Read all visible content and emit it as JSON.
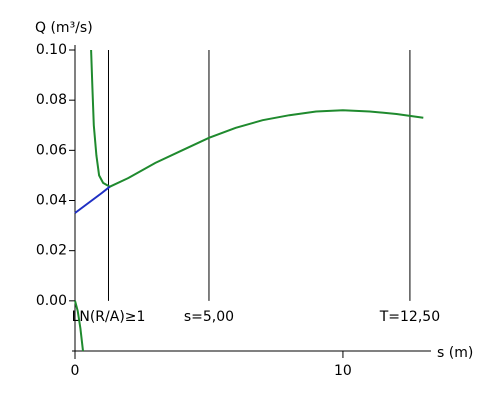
{
  "chart_data": {
    "type": "line",
    "y_label": "Q (m³/s)",
    "x_label": "s (m)",
    "xlim": [
      0,
      13.1
    ],
    "ylim": [
      -0.02,
      0.1
    ],
    "xticks": [
      0,
      10
    ],
    "yticks": [
      {
        "value": 0,
        "label": "0.00"
      },
      {
        "value": 0.02,
        "label": "0.02"
      },
      {
        "value": 0.04,
        "label": "0.04"
      },
      {
        "value": 0.06,
        "label": "0.06"
      },
      {
        "value": 0.08,
        "label": "0.08"
      },
      {
        "value": 0.1,
        "label": "0.10"
      }
    ],
    "markers": [
      {
        "x": 1.25,
        "label": "LN(R/A)≥1"
      },
      {
        "x": 5,
        "label": "s=5,00"
      },
      {
        "x": 12.5,
        "label": "T=12,50"
      }
    ],
    "series": [
      {
        "color": "#1f8a2e",
        "x": [
          0,
          0.1,
          0.2,
          0.3,
          null,
          0.6,
          0.65,
          0.7,
          0.8,
          0.9,
          1.05,
          1.3,
          2,
          3,
          4,
          5,
          6,
          7,
          8,
          9,
          10,
          11,
          12,
          13
        ],
        "values": [
          0,
          -0.004,
          -0.011,
          -0.02,
          null,
          0.1,
          0.085,
          0.07,
          0.058,
          0.05,
          0.047,
          0.0455,
          0.049,
          0.055,
          0.06,
          0.065,
          0.069,
          0.072,
          0.074,
          0.0755,
          0.076,
          0.0755,
          0.0745,
          0.073
        ]
      },
      {
        "color": "#1f2fc4",
        "x": [
          0,
          0.5,
          1,
          1.3
        ],
        "values": [
          0.035,
          0.039,
          0.043,
          0.0455
        ]
      }
    ]
  }
}
